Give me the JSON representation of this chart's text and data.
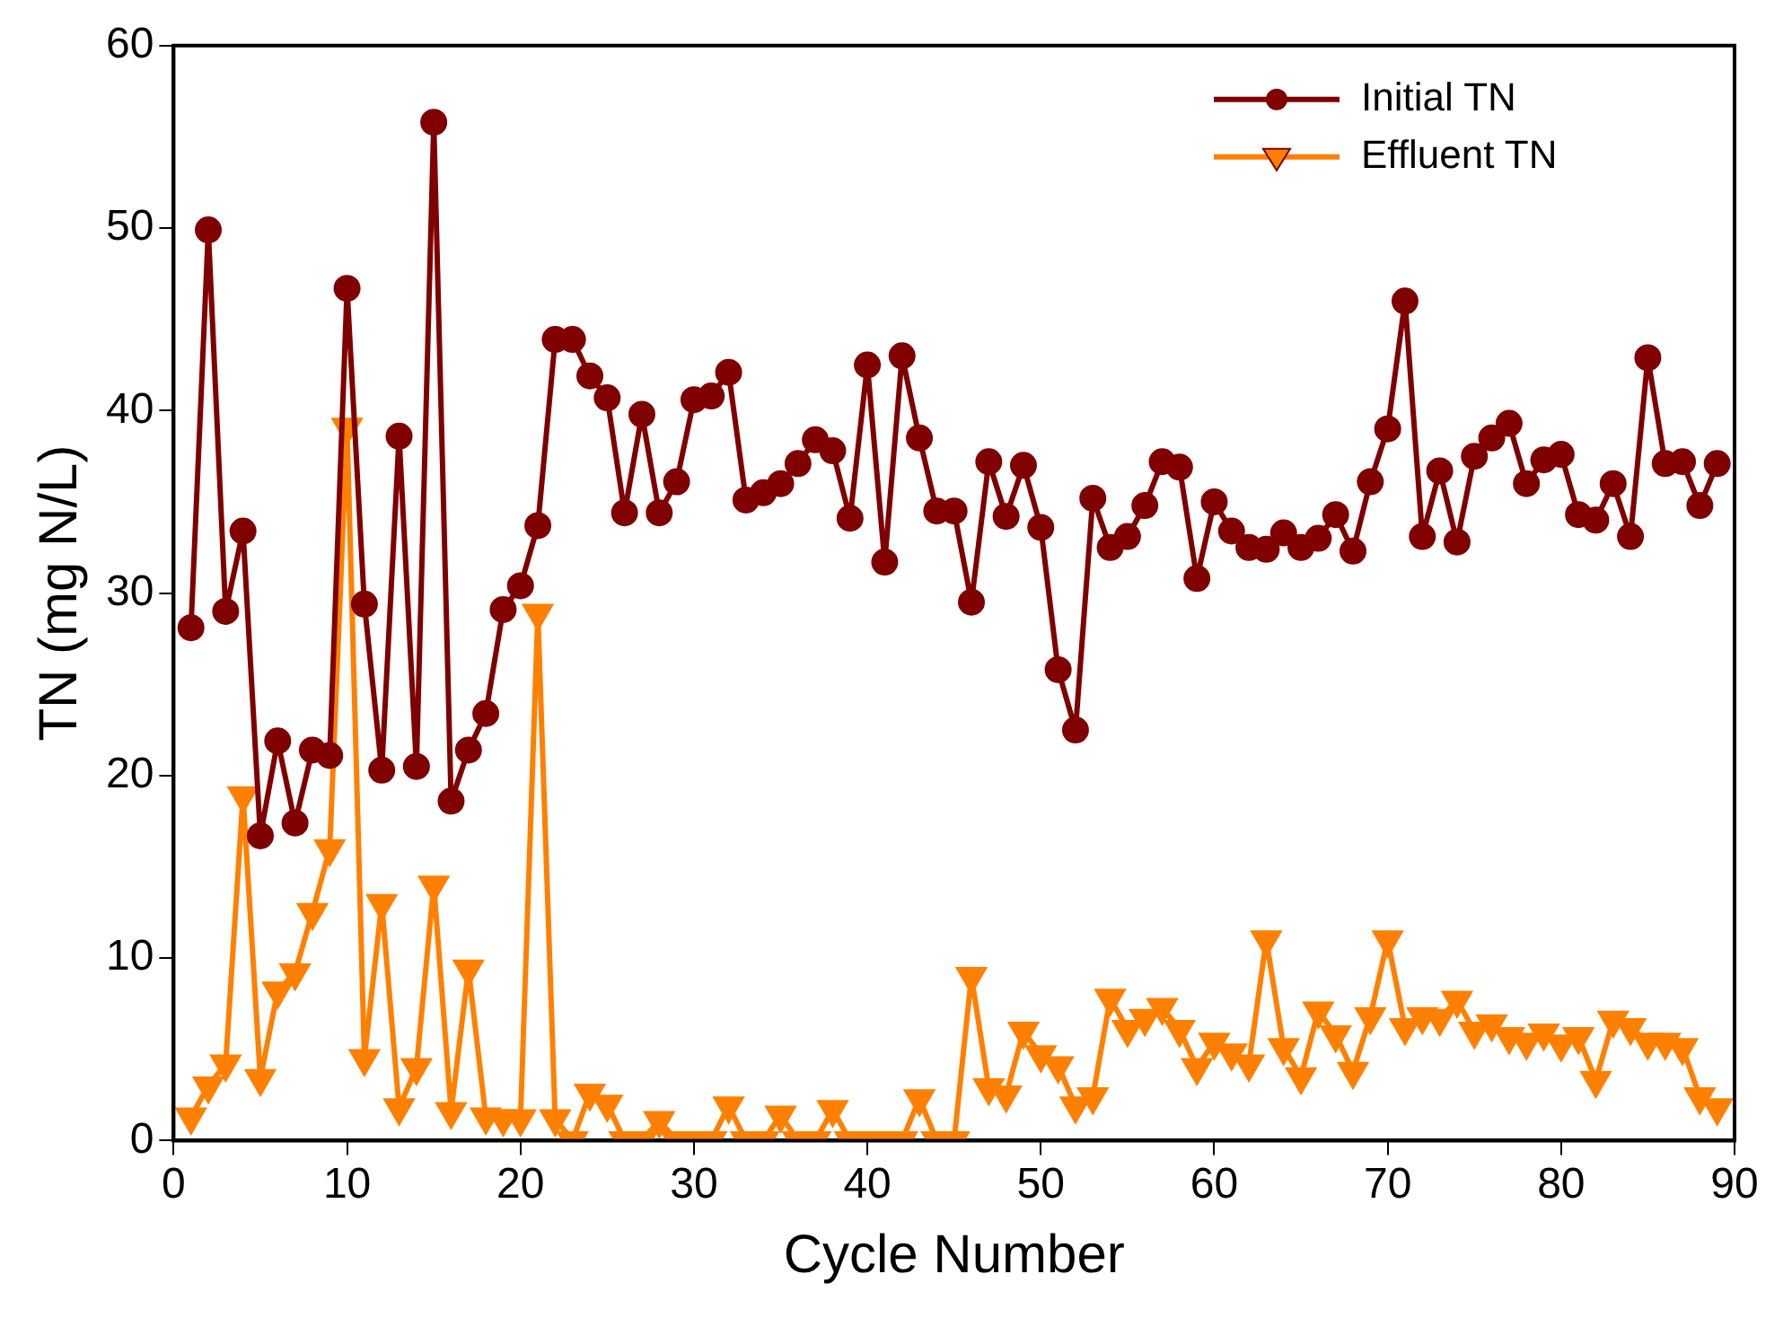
{
  "chart_data": {
    "type": "line",
    "xlabel": "Cycle Number",
    "ylabel": "TN (mg N/L)",
    "x": [
      1,
      2,
      3,
      4,
      5,
      6,
      7,
      8,
      9,
      10,
      11,
      12,
      13,
      14,
      15,
      16,
      17,
      18,
      19,
      20,
      21,
      22,
      23,
      24,
      25,
      26,
      27,
      28,
      29,
      30,
      31,
      32,
      33,
      34,
      35,
      36,
      37,
      38,
      39,
      40,
      41,
      42,
      43,
      44,
      45,
      46,
      47,
      48,
      49,
      50,
      51,
      52,
      53,
      54,
      55,
      56,
      57,
      58,
      59,
      60,
      61,
      62,
      63,
      64,
      65,
      66,
      67,
      68,
      69,
      70,
      71,
      72,
      73,
      74,
      75,
      76,
      77,
      78,
      79,
      80,
      81,
      82,
      83,
      84,
      85,
      86,
      87,
      88,
      89
    ],
    "series": [
      {
        "name": "Initial TN",
        "color": "#800000",
        "marker": "circle",
        "values": [
          28.1,
          49.9,
          29,
          33.4,
          16.7,
          21.9,
          17.4,
          21.4,
          21.1,
          46.7,
          29.4,
          20.3,
          38.6,
          20.5,
          55.8,
          18.6,
          21.4,
          23.4,
          29.1,
          30.4,
          33.7,
          43.9,
          43.9,
          41.9,
          40.7,
          34.4,
          39.8,
          34.4,
          36.1,
          40.6,
          40.8,
          42.1,
          35.1,
          35.5,
          36,
          37.1,
          38.4,
          37.8,
          34.1,
          42.5,
          31.7,
          43,
          38.5,
          34.5,
          34.5,
          29.5,
          37.2,
          34.2,
          37,
          33.6,
          25.8,
          22.5,
          35.2,
          32.5,
          33.1,
          34.8,
          37.2,
          36.9,
          30.8,
          35,
          33.4,
          32.5,
          32.4,
          33.3,
          32.5,
          33,
          34.3,
          32.3,
          36.1,
          39,
          46,
          33.1,
          36.7,
          32.8,
          37.5,
          38.5,
          39.3,
          36,
          37.3,
          37.6,
          34.3,
          34,
          36,
          33.1,
          42.9,
          37.1,
          37.2,
          34.8,
          37.1
        ]
      },
      {
        "name": "Effluent TN",
        "color": "#ff8000",
        "marker": "triangle",
        "values": [
          1.3,
          3,
          4.2,
          18.9,
          3.4,
          8.2,
          9.2,
          12.5,
          16,
          39.1,
          4.5,
          13,
          1.8,
          4,
          14,
          1.6,
          9.4,
          1.3,
          1.2,
          1.2,
          28.9,
          1.2,
          0,
          2.6,
          2,
          0,
          0,
          1.1,
          0,
          0,
          0,
          1.9,
          0,
          0,
          1.4,
          0,
          0,
          1.7,
          0,
          0,
          0,
          0,
          2.3,
          0,
          0,
          9,
          2.9,
          2.5,
          6,
          4.7,
          4.1,
          1.9,
          2.4,
          7.8,
          6.1,
          6.7,
          7.3,
          6.1,
          4,
          5.4,
          4.8,
          4.2,
          11,
          5.1,
          3.5,
          7.1,
          5.8,
          3.8,
          6.8,
          11,
          6.2,
          6.8,
          6.7,
          7.7,
          6,
          6.4,
          5.7,
          5.4,
          5.9,
          5.3,
          5.7,
          3.3,
          6.6,
          6.2,
          5.4,
          5.4,
          5.1,
          2.4,
          1.8
        ]
      }
    ],
    "xlim": [
      0,
      90
    ],
    "xticks": [
      0,
      10,
      20,
      30,
      40,
      50,
      60,
      70,
      80,
      90
    ],
    "ylim": [
      0,
      60
    ],
    "yticks": [
      0,
      10,
      20,
      30,
      40,
      50,
      60
    ],
    "grid": false,
    "legend": "top right",
    "line_style": "solid"
  }
}
